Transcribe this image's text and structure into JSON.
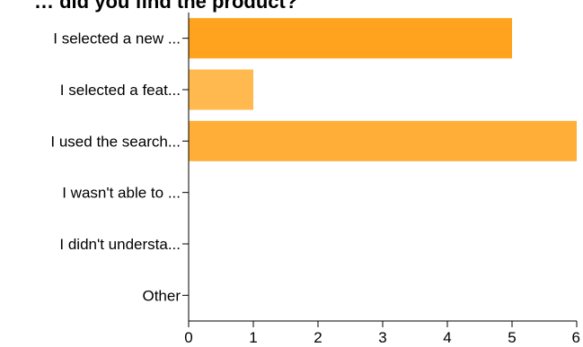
{
  "chart_data": {
    "type": "bar",
    "orientation": "horizontal",
    "title": "… did you find the product?",
    "categories": [
      "I selected a new ...",
      "I selected a feat...",
      "I used the search...",
      "I wasn't able to ...",
      "I didn't understa...",
      "Other"
    ],
    "values": [
      5,
      1,
      6,
      0,
      0,
      0
    ],
    "colors": [
      "#ffa31f",
      "#ffb94f",
      "#ffae37",
      "#ffa31f",
      "#ffa31f",
      "#ffa31f"
    ],
    "xlim": [
      0,
      6
    ],
    "xticks": [
      "0",
      "1",
      "2",
      "3",
      "4",
      "5",
      "6"
    ],
    "xlabel": "",
    "ylabel": "",
    "grid": false,
    "legend": "none"
  }
}
